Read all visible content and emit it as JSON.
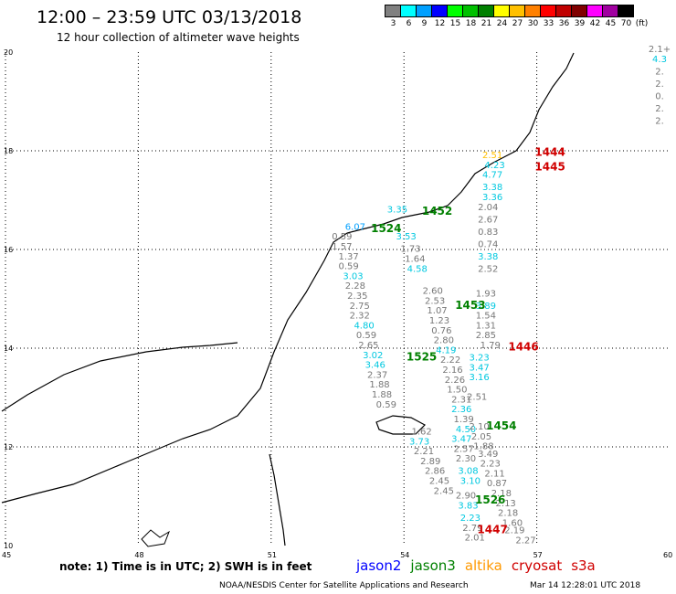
{
  "header": {
    "title": "12:00 – 23:59 UTC 03/13/2018",
    "subtitle": "12 hour collection of altimeter wave heights"
  },
  "legend": {
    "unit_label": "(ft)",
    "bins": [
      {
        "label": "3",
        "color": "#808080"
      },
      {
        "label": "6",
        "color": "#00ffff"
      },
      {
        "label": "9",
        "color": "#00a0ff"
      },
      {
        "label": "12",
        "color": "#0000ff"
      },
      {
        "label": "15",
        "color": "#00ff00"
      },
      {
        "label": "18",
        "color": "#00c000"
      },
      {
        "label": "21",
        "color": "#008000"
      },
      {
        "label": "24",
        "color": "#ffff00"
      },
      {
        "label": "27",
        "color": "#ffc000"
      },
      {
        "label": "30",
        "color": "#ff8000"
      },
      {
        "label": "33",
        "color": "#ff0000"
      },
      {
        "label": "36",
        "color": "#c00000"
      },
      {
        "label": "39",
        "color": "#800000"
      },
      {
        "label": "42",
        "color": "#ff00ff"
      },
      {
        "label": "45",
        "color": "#a000a0"
      },
      {
        "label": "70",
        "color": "#000000"
      }
    ]
  },
  "axes": {
    "lat_labels": [
      "20",
      "18",
      "16",
      "14",
      "12",
      "10"
    ],
    "lon_labels": [
      "45",
      "48",
      "51",
      "54",
      "57",
      "60"
    ]
  },
  "pass_labels": [
    {
      "text": "1444",
      "color": "#d00000",
      "lon": 57.3,
      "lat": 17.9
    },
    {
      "text": "1445",
      "color": "#d00000",
      "lon": 57.3,
      "lat": 17.6
    },
    {
      "text": "1452",
      "color": "#008000",
      "lon": 54.75,
      "lat": 16.7
    },
    {
      "text": "1524",
      "color": "#008000",
      "lon": 53.6,
      "lat": 16.35
    },
    {
      "text": "1453",
      "color": "#008000",
      "lon": 55.5,
      "lat": 14.8
    },
    {
      "text": "1446",
      "color": "#d00000",
      "lon": 56.7,
      "lat": 13.95
    },
    {
      "text": "1525",
      "color": "#008000",
      "lon": 54.4,
      "lat": 13.75
    },
    {
      "text": "1454",
      "color": "#008000",
      "lon": 56.2,
      "lat": 12.35
    },
    {
      "text": "1526",
      "color": "#008000",
      "lon": 55.95,
      "lat": 10.85
    },
    {
      "text": "1447",
      "color": "#d00000",
      "lon": 56.0,
      "lat": 10.25
    }
  ],
  "swh_readings": [
    {
      "v": "2.51",
      "lon": 56.0,
      "lat": 17.85,
      "c": "#ffc000"
    },
    {
      "v": "4.23",
      "lon": 56.05,
      "lat": 17.65,
      "c": "#00c8e0"
    },
    {
      "v": "4.77",
      "lon": 56.0,
      "lat": 17.45,
      "c": "#00c8e0"
    },
    {
      "v": "3.38",
      "lon": 56.0,
      "lat": 17.2,
      "c": "#00c8e0"
    },
    {
      "v": "3.36",
      "lon": 56.0,
      "lat": 17.0,
      "c": "#00c8e0"
    },
    {
      "v": "2.04",
      "lon": 55.9,
      "lat": 16.8,
      "c": "#777"
    },
    {
      "v": "2.67",
      "lon": 55.9,
      "lat": 16.55,
      "c": "#777"
    },
    {
      "v": "0.83",
      "lon": 55.9,
      "lat": 16.3,
      "c": "#777"
    },
    {
      "v": "0.74",
      "lon": 55.9,
      "lat": 16.05,
      "c": "#777"
    },
    {
      "v": "3.38",
      "lon": 55.9,
      "lat": 15.8,
      "c": "#00c8e0"
    },
    {
      "v": "2.52",
      "lon": 55.9,
      "lat": 15.55,
      "c": "#777"
    },
    {
      "v": "3.35",
      "lon": 53.85,
      "lat": 16.75,
      "c": "#00c8e0"
    },
    {
      "v": "6.07",
      "lon": 52.9,
      "lat": 16.4,
      "c": "#00a0ff"
    },
    {
      "v": "0.59",
      "lon": 52.6,
      "lat": 16.2,
      "c": "#777"
    },
    {
      "v": "1.57",
      "lon": 52.6,
      "lat": 16.0,
      "c": "#777"
    },
    {
      "v": "1.37",
      "lon": 52.75,
      "lat": 15.8,
      "c": "#777"
    },
    {
      "v": "0.59",
      "lon": 52.75,
      "lat": 15.6,
      "c": "#777"
    },
    {
      "v": "3.03",
      "lon": 52.85,
      "lat": 15.4,
      "c": "#00c8e0"
    },
    {
      "v": "2.28",
      "lon": 52.9,
      "lat": 15.2,
      "c": "#777"
    },
    {
      "v": "2.35",
      "lon": 52.95,
      "lat": 15.0,
      "c": "#777"
    },
    {
      "v": "2.75",
      "lon": 53.0,
      "lat": 14.8,
      "c": "#777"
    },
    {
      "v": "2.32",
      "lon": 53.0,
      "lat": 14.6,
      "c": "#777"
    },
    {
      "v": "4.80",
      "lon": 53.1,
      "lat": 14.4,
      "c": "#00c8e0"
    },
    {
      "v": "0.59",
      "lon": 53.15,
      "lat": 14.2,
      "c": "#777"
    },
    {
      "v": "2.65",
      "lon": 53.2,
      "lat": 14.0,
      "c": "#777"
    },
    {
      "v": "3.02",
      "lon": 53.3,
      "lat": 13.8,
      "c": "#00c8e0"
    },
    {
      "v": "3.46",
      "lon": 53.35,
      "lat": 13.6,
      "c": "#00c8e0"
    },
    {
      "v": "2.37",
      "lon": 53.4,
      "lat": 13.4,
      "c": "#777"
    },
    {
      "v": "1.88",
      "lon": 53.45,
      "lat": 13.2,
      "c": "#777"
    },
    {
      "v": "1.88",
      "lon": 53.5,
      "lat": 13.0,
      "c": "#777"
    },
    {
      "v": "0.59",
      "lon": 53.6,
      "lat": 12.8,
      "c": "#777"
    },
    {
      "v": "3.53",
      "lon": 54.05,
      "lat": 16.2,
      "c": "#00c8e0"
    },
    {
      "v": "1.73",
      "lon": 54.15,
      "lat": 15.95,
      "c": "#777"
    },
    {
      "v": "1.64",
      "lon": 54.25,
      "lat": 15.75,
      "c": "#777"
    },
    {
      "v": "4.58",
      "lon": 54.3,
      "lat": 15.55,
      "c": "#00c8e0"
    },
    {
      "v": "2.60",
      "lon": 54.65,
      "lat": 15.1,
      "c": "#777"
    },
    {
      "v": "2.53",
      "lon": 54.7,
      "lat": 14.9,
      "c": "#777"
    },
    {
      "v": "1.07",
      "lon": 54.75,
      "lat": 14.7,
      "c": "#777"
    },
    {
      "v": "1.23",
      "lon": 54.8,
      "lat": 14.5,
      "c": "#777"
    },
    {
      "v": "0.76",
      "lon": 54.85,
      "lat": 14.3,
      "c": "#777"
    },
    {
      "v": "2.80",
      "lon": 54.9,
      "lat": 14.1,
      "c": "#777"
    },
    {
      "v": "4.19",
      "lon": 54.95,
      "lat": 13.9,
      "c": "#00c8e0"
    },
    {
      "v": "2.22",
      "lon": 55.05,
      "lat": 13.7,
      "c": "#777"
    },
    {
      "v": "2.16",
      "lon": 55.1,
      "lat": 13.5,
      "c": "#777"
    },
    {
      "v": "2.26",
      "lon": 55.15,
      "lat": 13.3,
      "c": "#777"
    },
    {
      "v": "1.50",
      "lon": 55.2,
      "lat": 13.1,
      "c": "#777"
    },
    {
      "v": "2.31",
      "lon": 55.3,
      "lat": 12.9,
      "c": "#777"
    },
    {
      "v": "2.36",
      "lon": 55.3,
      "lat": 12.7,
      "c": "#00c8e0"
    },
    {
      "v": "1.39",
      "lon": 55.35,
      "lat": 12.5,
      "c": "#777"
    },
    {
      "v": "4.50",
      "lon": 55.4,
      "lat": 12.3,
      "c": "#00c8e0"
    },
    {
      "v": "3.47",
      "lon": 55.3,
      "lat": 12.1,
      "c": "#00c8e0"
    },
    {
      "v": "2.57",
      "lon": 55.35,
      "lat": 11.9,
      "c": "#777"
    },
    {
      "v": "2.30",
      "lon": 55.4,
      "lat": 11.7,
      "c": "#777"
    },
    {
      "v": "3.08",
      "lon": 55.45,
      "lat": 11.45,
      "c": "#00c8e0"
    },
    {
      "v": "3.10",
      "lon": 55.5,
      "lat": 11.25,
      "c": "#00c8e0"
    },
    {
      "v": "2.90",
      "lon": 55.4,
      "lat": 10.95,
      "c": "#777"
    },
    {
      "v": "3.83",
      "lon": 55.45,
      "lat": 10.75,
      "c": "#00c8e0"
    },
    {
      "v": "2.23",
      "lon": 55.5,
      "lat": 10.5,
      "c": "#00c8e0"
    },
    {
      "v": "2.79",
      "lon": 55.55,
      "lat": 10.3,
      "c": "#777"
    },
    {
      "v": "2.01",
      "lon": 55.6,
      "lat": 10.1,
      "c": "#777"
    },
    {
      "v": "1.79",
      "lon": 55.95,
      "lat": 14.0,
      "c": "#777"
    },
    {
      "v": "1.93",
      "lon": 55.85,
      "lat": 15.05,
      "c": "#777"
    },
    {
      "v": "3.89",
      "lon": 55.85,
      "lat": 14.8,
      "c": "#00c8e0"
    },
    {
      "v": "1.54",
      "lon": 55.85,
      "lat": 14.6,
      "c": "#777"
    },
    {
      "v": "1.31",
      "lon": 55.85,
      "lat": 14.4,
      "c": "#777"
    },
    {
      "v": "2.85",
      "lon": 55.85,
      "lat": 14.2,
      "c": "#777"
    },
    {
      "v": "3.23",
      "lon": 55.7,
      "lat": 13.75,
      "c": "#00c8e0"
    },
    {
      "v": "3.47",
      "lon": 55.7,
      "lat": 13.55,
      "c": "#00c8e0"
    },
    {
      "v": "3.16",
      "lon": 55.7,
      "lat": 13.35,
      "c": "#00c8e0"
    },
    {
      "v": "2.51",
      "lon": 55.65,
      "lat": 12.95,
      "c": "#777"
    },
    {
      "v": "2.10",
      "lon": 55.7,
      "lat": 12.35,
      "c": "#777"
    },
    {
      "v": "2.05",
      "lon": 55.75,
      "lat": 12.15,
      "c": "#777"
    },
    {
      "v": "1.88",
      "lon": 55.8,
      "lat": 11.95,
      "c": "#777"
    },
    {
      "v": "3.49",
      "lon": 55.9,
      "lat": 11.8,
      "c": "#777"
    },
    {
      "v": "2.23",
      "lon": 55.95,
      "lat": 11.6,
      "c": "#777"
    },
    {
      "v": "2.11",
      "lon": 56.05,
      "lat": 11.4,
      "c": "#777"
    },
    {
      "v": "0.87",
      "lon": 56.1,
      "lat": 11.2,
      "c": "#777"
    },
    {
      "v": "2.18",
      "lon": 56.2,
      "lat": 11.0,
      "c": "#777"
    },
    {
      "v": "2.13",
      "lon": 56.3,
      "lat": 10.8,
      "c": "#777"
    },
    {
      "v": "2.18",
      "lon": 56.35,
      "lat": 10.6,
      "c": "#777"
    },
    {
      "v": "1.60",
      "lon": 56.45,
      "lat": 10.4,
      "c": "#777"
    },
    {
      "v": "2.19",
      "lon": 56.5,
      "lat": 10.25,
      "c": "#777"
    },
    {
      "v": "2.27",
      "lon": 56.75,
      "lat": 10.05,
      "c": "#777"
    },
    {
      "v": "1.62",
      "lon": 54.4,
      "lat": 12.25,
      "c": "#777"
    },
    {
      "v": "3.73",
      "lon": 54.35,
      "lat": 12.05,
      "c": "#00c8e0"
    },
    {
      "v": "2.21",
      "lon": 54.45,
      "lat": 11.85,
      "c": "#777"
    },
    {
      "v": "2.89",
      "lon": 54.6,
      "lat": 11.65,
      "c": "#777"
    },
    {
      "v": "2.86",
      "lon": 54.7,
      "lat": 11.45,
      "c": "#777"
    },
    {
      "v": "2.45",
      "lon": 54.8,
      "lat": 11.25,
      "c": "#777"
    },
    {
      "v": "2.45",
      "lon": 54.9,
      "lat": 11.05,
      "c": "#777"
    },
    {
      "v": "2.1+",
      "lon": 59.85,
      "lat": 20.0,
      "c": "#777"
    },
    {
      "v": "4.3",
      "lon": 59.9,
      "lat": 19.8,
      "c": "#00c8e0"
    },
    {
      "v": "2.",
      "lon": 59.95,
      "lat": 19.55,
      "c": "#777"
    },
    {
      "v": "2.",
      "lon": 59.95,
      "lat": 19.3,
      "c": "#777"
    },
    {
      "v": "0.",
      "lon": 59.95,
      "lat": 19.05,
      "c": "#777"
    },
    {
      "v": "2.",
      "lon": 59.95,
      "lat": 18.8,
      "c": "#777"
    },
    {
      "v": "2.",
      "lon": 59.95,
      "lat": 18.55,
      "c": "#777"
    }
  ],
  "footer": {
    "note": "note:  1) Time is in UTC;  2) SWH is in feet",
    "satellites": [
      {
        "name": "jason2",
        "color": "#0000ff"
      },
      {
        "name": "jason3",
        "color": "#008000"
      },
      {
        "name": "altika",
        "color": "#ff9900"
      },
      {
        "name": "cryosat",
        "color": "#d00000"
      },
      {
        "name": "s3a",
        "color": "#d00000"
      }
    ],
    "credit": "NOAA/NESDIS Center for Satellite Applications and Research",
    "timestamp": "Mar 14 12:28:01 UTC 2018"
  }
}
